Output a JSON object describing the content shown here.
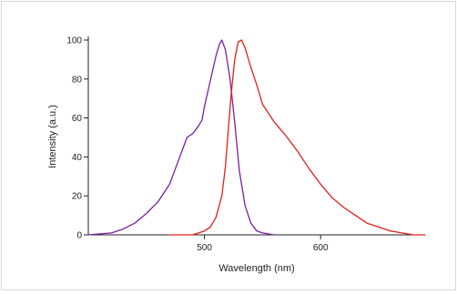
{
  "chart_data": {
    "type": "line",
    "title": "",
    "xlabel": "Wavelength (nm)",
    "ylabel": "Intensity (a.u.)",
    "xlim": [
      400,
      690
    ],
    "ylim": [
      0,
      100
    ],
    "xticks": [
      500,
      600
    ],
    "yticks": [
      0,
      20,
      40,
      60,
      80,
      100
    ],
    "grid": false,
    "legend": "none",
    "series": [
      {
        "color": "#7a1fa2",
        "x": [
          400,
          420,
          430,
          440,
          450,
          460,
          470,
          475,
          480,
          485,
          490,
          495,
          498,
          500,
          505,
          510,
          513,
          515,
          518,
          522,
          526,
          530,
          535,
          540,
          545,
          550,
          560
        ],
        "y": [
          0,
          1,
          3,
          6,
          11,
          17,
          26,
          34,
          42,
          50,
          52,
          56,
          59,
          66,
          79,
          92,
          98,
          100,
          95,
          80,
          58,
          33,
          15,
          6,
          2,
          1,
          0
        ]
      },
      {
        "color": "#e0201a",
        "x": [
          470,
          480,
          490,
          495,
          500,
          505,
          510,
          515,
          518,
          520,
          523,
          526,
          529,
          532,
          535,
          540,
          545,
          550,
          560,
          570,
          580,
          590,
          600,
          610,
          620,
          630,
          640,
          650,
          660,
          670,
          680,
          690
        ],
        "y": [
          0,
          0,
          0,
          1,
          2,
          4,
          9,
          20,
          35,
          50,
          72,
          90,
          99,
          100,
          96,
          86,
          77,
          67,
          58,
          51,
          43,
          34,
          26,
          19,
          14,
          10,
          6,
          4,
          2,
          1,
          0,
          0
        ]
      }
    ]
  }
}
